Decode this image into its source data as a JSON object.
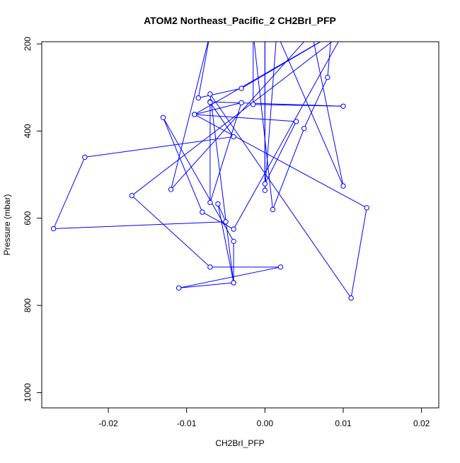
{
  "chart_data": {
    "type": "line",
    "title": "ATOM2 Northeast_Pacific_2 CH2BrI_PFP",
    "xlabel": "CH2BrI_PFP",
    "ylabel": "Pressure (mbar)",
    "xlim": [
      -0.0285,
      0.0222
    ],
    "ylim": [
      1035,
      195
    ],
    "y_reversed": true,
    "x_ticks": [
      -0.02,
      -0.01,
      0.0,
      0.01,
      0.02
    ],
    "x_tick_labels": [
      "-0.02",
      "-0.01",
      "0.00",
      "0.01",
      "0.02"
    ],
    "y_ticks": [
      200,
      400,
      600,
      800,
      1000
    ],
    "y_tick_labels": [
      "200",
      "400",
      "600",
      "800",
      "1000"
    ],
    "grid": false,
    "legend": "none",
    "series": [
      {
        "color": "#0000ff",
        "marker": "open-circle",
        "points": [
          {
            "x": 0.0085,
            "y": 175
          },
          {
            "x": 0.008,
            "y": 277
          },
          {
            "x": 0.005,
            "y": 394
          },
          {
            "x": 0.001,
            "y": 580
          },
          {
            "x": -0.0015,
            "y": 175
          },
          {
            "x": -0.0015,
            "y": 339
          },
          {
            "x": 0.01,
            "y": 343
          },
          {
            "x": -0.007,
            "y": 333
          },
          {
            "x": -0.007,
            "y": 564
          },
          {
            "x": -0.003,
            "y": 335
          },
          {
            "x": -0.009,
            "y": 362
          },
          {
            "x": 0.009,
            "y": 175
          },
          {
            "x": -0.003,
            "y": 302
          },
          {
            "x": -0.0085,
            "y": 324
          },
          {
            "x": -0.007,
            "y": 176
          },
          {
            "x": -0.012,
            "y": 534
          },
          {
            "x": 0.006,
            "y": 175
          },
          {
            "x": 0.01,
            "y": 526
          },
          {
            "x": 0.0015,
            "y": 175
          },
          {
            "x": 0.0,
            "y": 536
          },
          {
            "x": 0.0,
            "y": 175
          },
          {
            "x": 0.0,
            "y": 521
          },
          {
            "x": 0.004,
            "y": 378
          },
          {
            "x": -0.009,
            "y": 362
          },
          {
            "x": 0.013,
            "y": 576
          },
          {
            "x": 0.011,
            "y": 783
          },
          {
            "x": -0.007,
            "y": 315
          },
          {
            "x": -0.004,
            "y": 748
          },
          {
            "x": -0.004,
            "y": 653
          },
          {
            "x": -0.013,
            "y": 369
          },
          {
            "x": -0.008,
            "y": 586
          },
          {
            "x": -0.004,
            "y": 625
          },
          {
            "x": 0.01,
            "y": 175
          },
          {
            "x": -0.017,
            "y": 548
          },
          {
            "x": -0.007,
            "y": 712
          },
          {
            "x": 0.002,
            "y": 712
          },
          {
            "x": -0.011,
            "y": 760
          },
          {
            "x": -0.004,
            "y": 748
          },
          {
            "x": -0.006,
            "y": 567
          },
          {
            "x": -0.005,
            "y": 608
          },
          {
            "x": -0.027,
            "y": 624
          },
          {
            "x": -0.023,
            "y": 460
          },
          {
            "x": -0.004,
            "y": 413
          },
          {
            "x": -0.007,
            "y": 334
          }
        ]
      }
    ]
  }
}
